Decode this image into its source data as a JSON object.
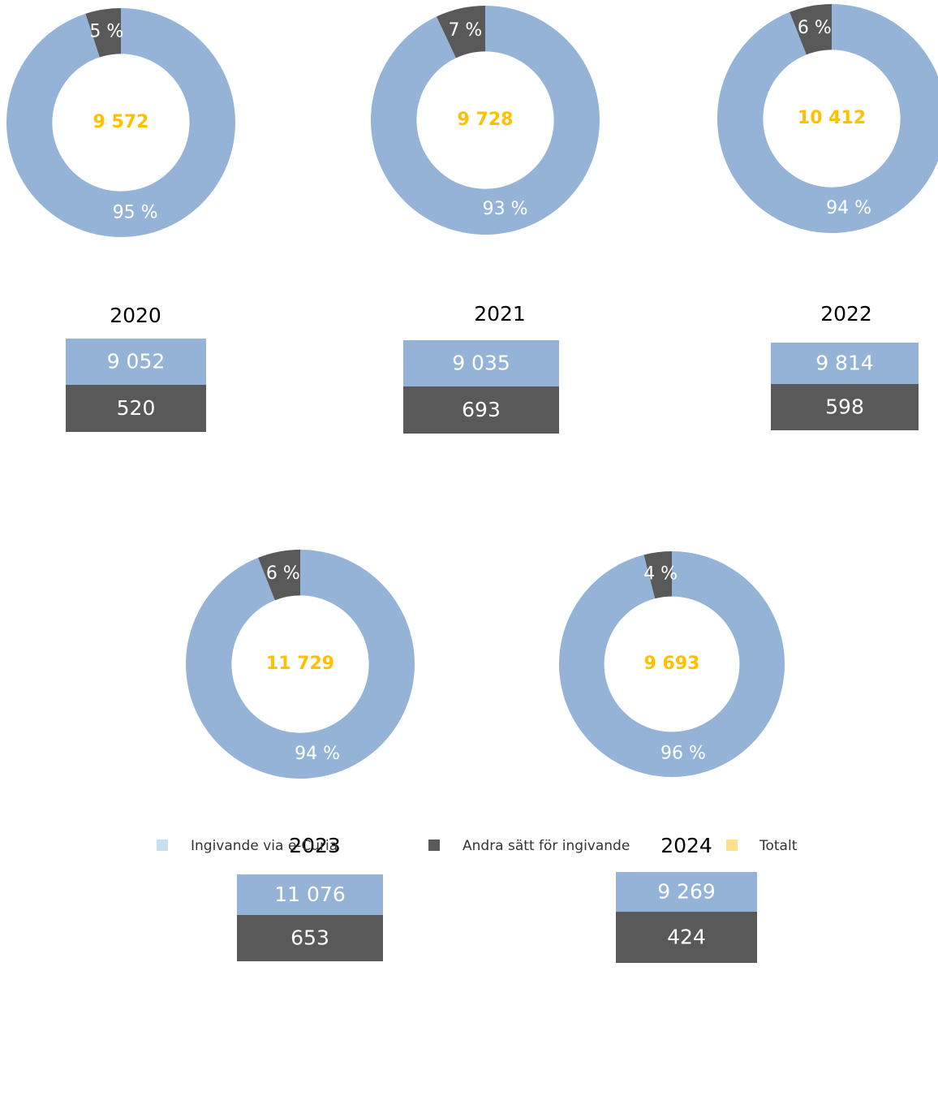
{
  "legend": [
    {
      "name": "Ingivande via e-Curia",
      "color": "#c5dff0"
    },
    {
      "name": "Andra sätt för ingivande",
      "color": "#595959"
    },
    {
      "name": "Totalt",
      "color": "#ffe08a"
    }
  ],
  "chart_data": [
    {
      "type": "donut",
      "title": "2020",
      "total": 9572,
      "total_label": "9 572",
      "total_color": "#ffc000",
      "colors": [
        "#95b3d7",
        "#595959"
      ],
      "values": [
        95,
        5
      ],
      "value_labels": [
        "95 %",
        "5 %"
      ],
      "counts": [
        9052,
        520
      ],
      "count_labels": [
        "9 052",
        "520"
      ]
    },
    {
      "type": "donut",
      "title": "2021",
      "total": 9728,
      "total_label": "9 728",
      "total_color": "#ffc000",
      "colors": [
        "#95b3d7",
        "#595959"
      ],
      "values": [
        93,
        7
      ],
      "value_labels": [
        "93 %",
        "7 %"
      ],
      "counts": [
        9035,
        693
      ],
      "count_labels": [
        "9 035",
        "693"
      ]
    },
    {
      "type": "donut",
      "title": "2022",
      "total": 10412,
      "total_label": "10 412",
      "total_color": "#ffc000",
      "colors": [
        "#95b3d7",
        "#595959"
      ],
      "values": [
        94,
        6
      ],
      "value_labels": [
        "94 %",
        "6 %"
      ],
      "counts": [
        9814,
        598
      ],
      "count_labels": [
        "9 814",
        "598"
      ]
    },
    {
      "type": "donut",
      "title": "2023",
      "total": 11729,
      "total_label": "11 729",
      "total_color": "#ffc000",
      "colors": [
        "#95b3d7",
        "#595959"
      ],
      "values": [
        94,
        6
      ],
      "value_labels": [
        "94 %",
        "6 %"
      ],
      "counts": [
        11076,
        653
      ],
      "count_labels": [
        "11 076",
        "653"
      ]
    },
    {
      "type": "donut",
      "title": "2024",
      "total": 9693,
      "total_label": "9 693",
      "total_color": "#ffc000",
      "colors": [
        "#95b3d7",
        "#595959"
      ],
      "values": [
        96,
        4
      ],
      "value_labels": [
        "96 %",
        "4 %"
      ],
      "counts": [
        9269,
        424
      ],
      "count_labels": [
        "9 269",
        "424"
      ]
    }
  ]
}
